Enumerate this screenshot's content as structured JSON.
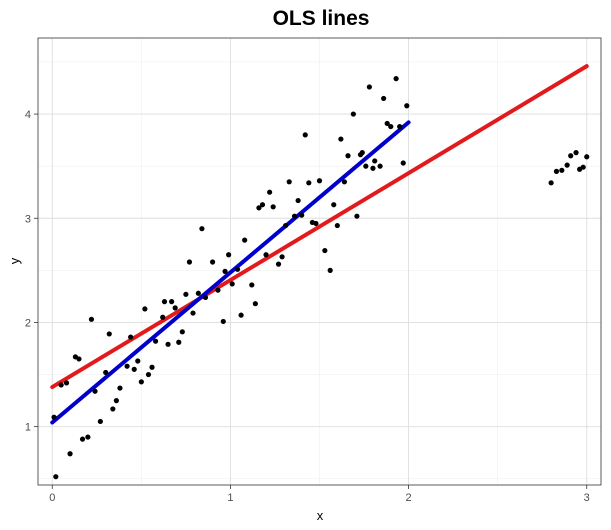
{
  "chart_data": {
    "type": "scatter",
    "title": "OLS lines",
    "xlabel": "x",
    "ylabel": "y",
    "xlim": [
      -0.08,
      3.08
    ],
    "ylim": [
      0.44,
      4.73
    ],
    "xticks": [
      0,
      1,
      2,
      3
    ],
    "yticks": [
      1,
      2,
      3,
      4
    ],
    "grid": true,
    "legend": "none",
    "colors": {
      "points": "#000000",
      "red_line": "#e31a1c",
      "blue_line": "#0000cc",
      "grid_major": "#dedede",
      "grid_minor": "#efefef",
      "panel_border": "#333333"
    },
    "points": [
      [
        0.01,
        1.09
      ],
      [
        0.02,
        0.52
      ],
      [
        0.05,
        1.4
      ],
      [
        0.08,
        1.42
      ],
      [
        0.1,
        0.74
      ],
      [
        0.13,
        1.67
      ],
      [
        0.15,
        1.65
      ],
      [
        0.17,
        0.88
      ],
      [
        0.2,
        0.9
      ],
      [
        0.22,
        2.03
      ],
      [
        0.24,
        1.34
      ],
      [
        0.27,
        1.05
      ],
      [
        0.3,
        1.52
      ],
      [
        0.32,
        1.89
      ],
      [
        0.34,
        1.17
      ],
      [
        0.36,
        1.25
      ],
      [
        0.38,
        1.37
      ],
      [
        0.42,
        1.58
      ],
      [
        0.44,
        1.86
      ],
      [
        0.46,
        1.55
      ],
      [
        0.48,
        1.63
      ],
      [
        0.5,
        1.43
      ],
      [
        0.52,
        2.13
      ],
      [
        0.54,
        1.5
      ],
      [
        0.56,
        1.57
      ],
      [
        0.58,
        1.82
      ],
      [
        0.62,
        2.05
      ],
      [
        0.63,
        2.2
      ],
      [
        0.65,
        1.79
      ],
      [
        0.67,
        2.2
      ],
      [
        0.69,
        2.14
      ],
      [
        0.71,
        1.81
      ],
      [
        0.73,
        1.91
      ],
      [
        0.75,
        2.27
      ],
      [
        0.77,
        2.58
      ],
      [
        0.79,
        2.09
      ],
      [
        0.82,
        2.28
      ],
      [
        0.84,
        2.9
      ],
      [
        0.86,
        2.24
      ],
      [
        0.9,
        2.58
      ],
      [
        0.93,
        2.31
      ],
      [
        0.96,
        2.01
      ],
      [
        0.97,
        2.49
      ],
      [
        0.99,
        2.65
      ],
      [
        1.01,
        2.37
      ],
      [
        1.04,
        2.51
      ],
      [
        1.06,
        2.07
      ],
      [
        1.08,
        2.79
      ],
      [
        1.12,
        2.36
      ],
      [
        1.14,
        2.18
      ],
      [
        1.16,
        3.1
      ],
      [
        1.18,
        3.13
      ],
      [
        1.2,
        2.65
      ],
      [
        1.22,
        3.25
      ],
      [
        1.24,
        3.11
      ],
      [
        1.27,
        2.56
      ],
      [
        1.29,
        2.63
      ],
      [
        1.31,
        2.93
      ],
      [
        1.33,
        3.35
      ],
      [
        1.36,
        3.02
      ],
      [
        1.38,
        3.17
      ],
      [
        1.4,
        3.03
      ],
      [
        1.42,
        3.8
      ],
      [
        1.44,
        3.34
      ],
      [
        1.46,
        2.96
      ],
      [
        1.48,
        2.95
      ],
      [
        1.5,
        3.36
      ],
      [
        1.53,
        2.69
      ],
      [
        1.56,
        2.5
      ],
      [
        1.58,
        3.13
      ],
      [
        1.6,
        2.93
      ],
      [
        1.62,
        3.76
      ],
      [
        1.64,
        3.35
      ],
      [
        1.66,
        3.6
      ],
      [
        1.69,
        4.0
      ],
      [
        1.71,
        3.02
      ],
      [
        1.73,
        3.61
      ],
      [
        1.74,
        3.63
      ],
      [
        1.76,
        3.5
      ],
      [
        1.78,
        4.26
      ],
      [
        1.8,
        3.48
      ],
      [
        1.81,
        3.55
      ],
      [
        1.84,
        3.5
      ],
      [
        1.86,
        4.15
      ],
      [
        1.88,
        3.91
      ],
      [
        1.9,
        3.88
      ],
      [
        1.93,
        4.34
      ],
      [
        1.95,
        3.88
      ],
      [
        1.97,
        3.53
      ],
      [
        1.99,
        4.08
      ],
      [
        2.8,
        3.34
      ],
      [
        2.83,
        3.45
      ],
      [
        2.86,
        3.46
      ],
      [
        2.89,
        3.51
      ],
      [
        2.91,
        3.6
      ],
      [
        2.94,
        3.63
      ],
      [
        2.96,
        3.47
      ],
      [
        2.98,
        3.49
      ],
      [
        3.0,
        3.59
      ]
    ],
    "lines": [
      {
        "color": "#e31a1c",
        "x": [
          0,
          3
        ],
        "y": [
          1.38,
          4.46
        ]
      },
      {
        "color": "#0000cc",
        "x": [
          0,
          2
        ],
        "y": [
          1.04,
          3.92
        ]
      }
    ]
  }
}
